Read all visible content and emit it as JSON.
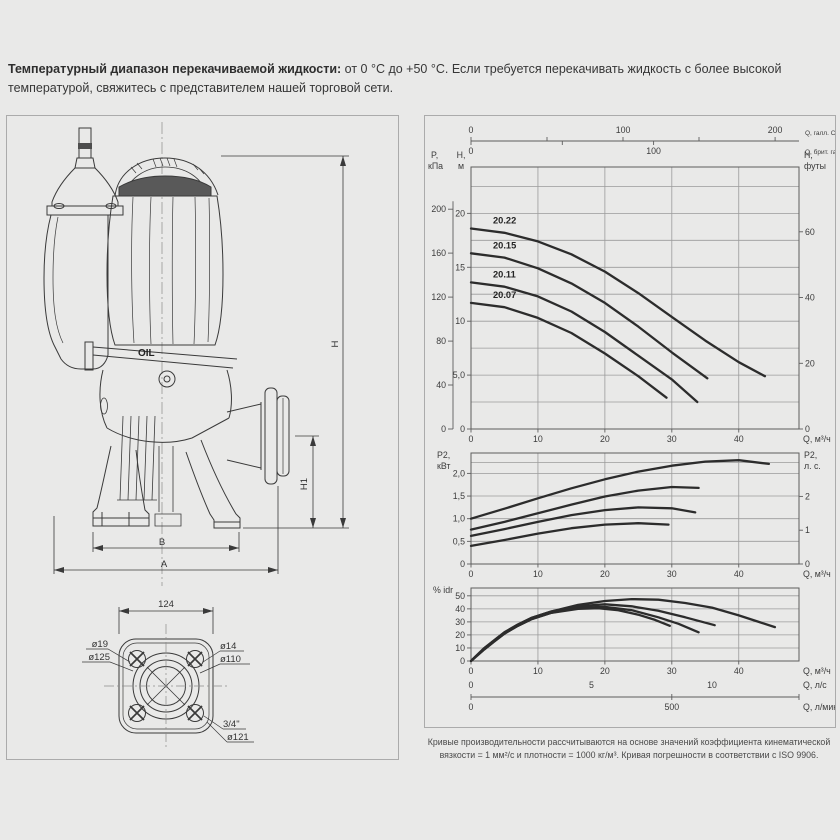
{
  "header": {
    "bold": "Температурный диапазон перекачиваемой жидкости:",
    "regular": " от 0 °C до +50 °C. Если требуется перекачивать жидкость с более высокой температурой, свяжитесь с представителем нашей торговой сети."
  },
  "footnote": "Кривые производительности рассчитываются на основе значений коэффициента кинематической вязкости = 1 мм²/с и плотности = 1000 кг/м³. Кривая погрешности в соответствии с ISO 9906.",
  "colors": {
    "curve": "#2c2c2c",
    "grid": "#9b9b9b",
    "frame": "#5d5d5d",
    "accent_dark_band": "#595959"
  },
  "drawing": {
    "oil_label": "OIL",
    "dim_h": "H",
    "dim_h1": "H1",
    "dim_b": "B",
    "dim_a": "A",
    "bottom_view": {
      "dim_width": "124",
      "hole_d1": "ø19",
      "circle_d1": "ø125",
      "hole_d2": "ø14",
      "circle_d2": "ø110",
      "thread": "3/4\"",
      "circle_d3": "ø121"
    }
  },
  "chart_data": [
    {
      "type": "line",
      "name": "head-flow",
      "xlabel": "Q, м³/ч",
      "xlim": [
        0,
        49
      ],
      "x_ticks": [
        0,
        10,
        20,
        30,
        40
      ],
      "ylim": [
        0,
        24.3
      ],
      "grid_step": 2.5,
      "left_axis_secondary": {
        "label": [
          "P,",
          "кПа"
        ],
        "ticks": [
          0,
          40,
          80,
          120,
          160,
          200
        ],
        "kpa_per_m": 9.81
      },
      "left_axis": {
        "label": [
          "H,",
          "м"
        ],
        "ticks": [
          {
            "v": 0,
            "t": "0"
          },
          {
            "v": 5,
            "t": "5,0"
          },
          {
            "v": 10,
            "t": "10"
          },
          {
            "v": 15,
            "t": "15"
          },
          {
            "v": 20,
            "t": "20"
          }
        ]
      },
      "right_axis": {
        "label": [
          "H,",
          "футы"
        ],
        "ticks": [
          0,
          20,
          40,
          60
        ],
        "m_per_ft": 0.3048
      },
      "top_axes": [
        {
          "label": "Q, галл. США/мин",
          "unit_per_m3h": 0.22712,
          "ticks": [
            0,
            50,
            100,
            150,
            200
          ],
          "labels": [
            0,
            100,
            200
          ]
        },
        {
          "label": "Q, брит. галл./мин",
          "unit_per_m3h": 0.27277,
          "ticks": [
            0,
            50,
            100
          ],
          "labels": [
            0,
            100
          ]
        }
      ],
      "series": [
        {
          "name": "20.22",
          "points": [
            [
              0,
              18.6
            ],
            [
              5,
              18.2
            ],
            [
              10,
              17.4
            ],
            [
              15,
              16.2
            ],
            [
              20,
              14.6
            ],
            [
              25,
              12.6
            ],
            [
              30,
              10.4
            ],
            [
              35,
              8.2
            ],
            [
              40,
              6.2
            ],
            [
              43.9,
              4.9
            ]
          ]
        },
        {
          "name": "20.15",
          "points": [
            [
              0,
              16.3
            ],
            [
              5,
              15.9
            ],
            [
              10,
              14.9
            ],
            [
              15,
              13.5
            ],
            [
              20,
              11.7
            ],
            [
              25,
              9.5
            ],
            [
              30,
              7.1
            ],
            [
              35.3,
              4.7
            ]
          ]
        },
        {
          "name": "20.11",
          "points": [
            [
              0,
              13.6
            ],
            [
              5,
              13.2
            ],
            [
              10,
              12.3
            ],
            [
              15,
              10.9
            ],
            [
              20,
              9.0
            ],
            [
              25,
              6.8
            ],
            [
              30,
              4.6
            ],
            [
              33.8,
              2.5
            ]
          ]
        },
        {
          "name": "20.07",
          "points": [
            [
              0,
              11.7
            ],
            [
              5,
              11.3
            ],
            [
              10,
              10.3
            ],
            [
              15,
              8.9
            ],
            [
              20,
              7.0
            ],
            [
              25,
              4.9
            ],
            [
              29.2,
              2.9
            ]
          ]
        }
      ]
    },
    {
      "type": "line",
      "name": "power-flow",
      "xlabel": "Q, м³/ч",
      "xlim": [
        0,
        49
      ],
      "x_ticks": [
        0,
        10,
        20,
        30,
        40
      ],
      "ylim": [
        0,
        2.45
      ],
      "grid_values": [
        0.5,
        1.0,
        1.5,
        2.0,
        2.24
      ],
      "left_axis": {
        "label": [
          "P2,",
          "кВт"
        ],
        "ticks": [
          {
            "v": 0,
            "t": "0"
          },
          {
            "v": 0.5,
            "t": "0,5"
          },
          {
            "v": 1,
            "t": "1,0"
          },
          {
            "v": 1.5,
            "t": "1,5"
          },
          {
            "v": 2,
            "t": "2,0"
          }
        ]
      },
      "right_axis": {
        "label": [
          "P2,",
          "л. с."
        ],
        "ticks": [
          0,
          1,
          2
        ],
        "kw_per_hp": 0.7457
      },
      "series": [
        {
          "name": "20.22",
          "points": [
            [
              0,
              1.0
            ],
            [
              5,
              1.22
            ],
            [
              10,
              1.45
            ],
            [
              15,
              1.67
            ],
            [
              20,
              1.87
            ],
            [
              25,
              2.04
            ],
            [
              30,
              2.17
            ],
            [
              35,
              2.26
            ],
            [
              40,
              2.29
            ],
            [
              44.5,
              2.21
            ]
          ]
        },
        {
          "name": "20.15",
          "points": [
            [
              0,
              0.76
            ],
            [
              5,
              0.93
            ],
            [
              10,
              1.12
            ],
            [
              15,
              1.31
            ],
            [
              20,
              1.49
            ],
            [
              25,
              1.62
            ],
            [
              30,
              1.7
            ],
            [
              34,
              1.68
            ]
          ]
        },
        {
          "name": "20.11",
          "points": [
            [
              0,
              0.62
            ],
            [
              5,
              0.77
            ],
            [
              10,
              0.93
            ],
            [
              15,
              1.08
            ],
            [
              20,
              1.19
            ],
            [
              25,
              1.25
            ],
            [
              30,
              1.23
            ],
            [
              33.5,
              1.14
            ]
          ]
        },
        {
          "name": "20.07",
          "points": [
            [
              0,
              0.4
            ],
            [
              5,
              0.53
            ],
            [
              10,
              0.67
            ],
            [
              15,
              0.79
            ],
            [
              20,
              0.87
            ],
            [
              25,
              0.9
            ],
            [
              29.5,
              0.87
            ]
          ]
        }
      ]
    },
    {
      "type": "line",
      "name": "efficiency-flow",
      "xlabel": "Q, м³/ч",
      "xlim": [
        0,
        49
      ],
      "x_ticks": [
        0,
        10,
        20,
        30,
        40
      ],
      "ylim": [
        0,
        56
      ],
      "grid_step": 10,
      "left_axis": {
        "label": [
          "% idr"
        ],
        "ticks": [
          {
            "v": 0,
            "t": "0"
          },
          {
            "v": 10,
            "t": "10"
          },
          {
            "v": 20,
            "t": "20"
          },
          {
            "v": 30,
            "t": "30"
          },
          {
            "v": 40,
            "t": "40"
          },
          {
            "v": 50,
            "t": "50"
          }
        ]
      },
      "sub_axes": [
        {
          "label": "Q, л/с",
          "m3h_per_unit": 3.6,
          "ticks": [
            0,
            5,
            10
          ]
        },
        {
          "label": "Q, л/мин",
          "m3h_per_unit": 0.06,
          "ticks": [
            0,
            500
          ],
          "line": true
        }
      ],
      "series": [
        {
          "name": "20.22",
          "points": [
            [
              0,
              0
            ],
            [
              1,
              5
            ],
            [
              2,
              10
            ],
            [
              3.5,
              16
            ],
            [
              5,
              22
            ],
            [
              7,
              28
            ],
            [
              9,
              33
            ],
            [
              12,
              38
            ],
            [
              16,
              43
            ],
            [
              20,
              46
            ],
            [
              24,
              47.5
            ],
            [
              28,
              47
            ],
            [
              32,
              44.5
            ],
            [
              36,
              41
            ],
            [
              40,
              35
            ],
            [
              45.4,
              26
            ]
          ]
        },
        {
          "name": "20.15",
          "points": [
            [
              0,
              0
            ],
            [
              1,
              5
            ],
            [
              2,
              10
            ],
            [
              3.5,
              16
            ],
            [
              5,
              22
            ],
            [
              7,
              28
            ],
            [
              9,
              33
            ],
            [
              12,
              38
            ],
            [
              16,
              42
            ],
            [
              20,
              43.5
            ],
            [
              24,
              42
            ],
            [
              28,
              38.5
            ],
            [
              32,
              33.5
            ],
            [
              36.4,
              27.5
            ]
          ]
        },
        {
          "name": "20.11",
          "points": [
            [
              0,
              0
            ],
            [
              1,
              4.5
            ],
            [
              2,
              9
            ],
            [
              3.5,
              15
            ],
            [
              5,
              21
            ],
            [
              7,
              27
            ],
            [
              9,
              32
            ],
            [
              12,
              37
            ],
            [
              16,
              41
            ],
            [
              20,
              41.5
            ],
            [
              24,
              39
            ],
            [
              28,
              33.5
            ],
            [
              31,
              28.5
            ],
            [
              34,
              22
            ]
          ]
        },
        {
          "name": "20.07",
          "points": [
            [
              0,
              0
            ],
            [
              1,
              4.5
            ],
            [
              2,
              9
            ],
            [
              3.5,
              15
            ],
            [
              5,
              21
            ],
            [
              7,
              27
            ],
            [
              9,
              32
            ],
            [
              12,
              37
            ],
            [
              16,
              40
            ],
            [
              19,
              40.5
            ],
            [
              22,
              39
            ],
            [
              25,
              35.5
            ],
            [
              27.5,
              31.5
            ],
            [
              29.7,
              27
            ]
          ]
        }
      ]
    }
  ]
}
